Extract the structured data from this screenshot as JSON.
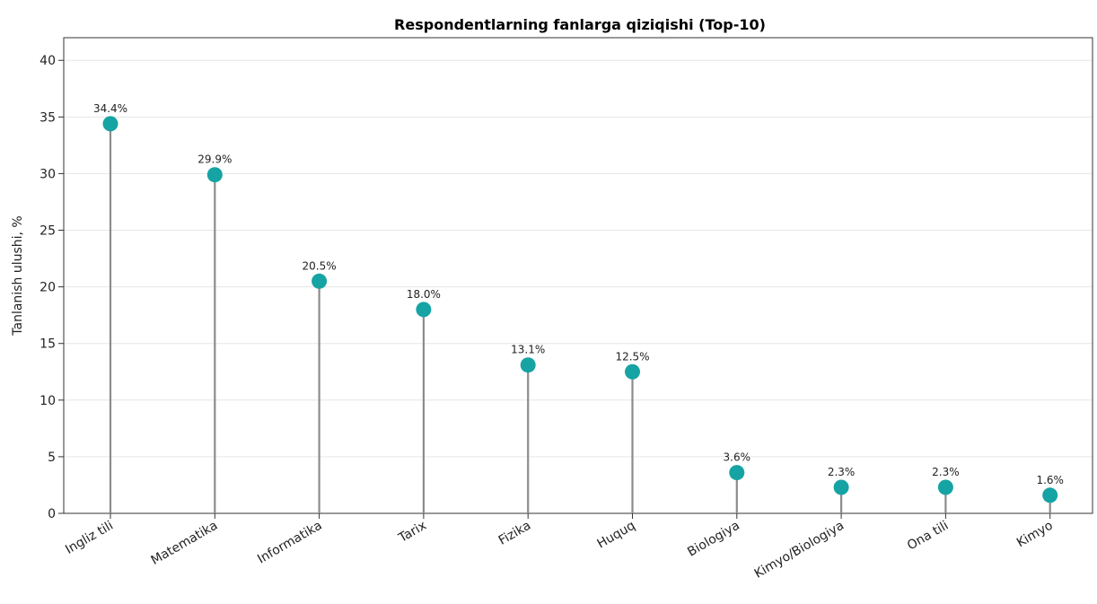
{
  "chart_data": {
    "type": "lollipop",
    "title": "Respondentlarning fanlarga qiziqishi (Top-10)",
    "xlabel": "",
    "ylabel": "Tanlanish ulushi, %",
    "ylim": [
      0,
      42
    ],
    "yticks": [
      0,
      5,
      10,
      15,
      20,
      25,
      30,
      35,
      40
    ],
    "grid": "horizontal",
    "categories": [
      "Ingliz tili",
      "Matematika",
      "Informatika",
      "Tarix",
      "Fizika",
      "Huquq",
      "Biologiya",
      "Kimyo/Biologiya",
      "Ona tili",
      "Kimyo"
    ],
    "values": [
      34.4,
      29.9,
      20.5,
      18.0,
      13.1,
      12.5,
      3.6,
      2.3,
      2.3,
      1.6
    ],
    "labels": [
      "34.4%",
      "29.9%",
      "20.5%",
      "18.0%",
      "13.1%",
      "12.5%",
      "3.6%",
      "2.3%",
      "2.3%",
      "1.6%"
    ],
    "marker_color": "#16a3a3",
    "stem_color": "#8c8c8c"
  }
}
